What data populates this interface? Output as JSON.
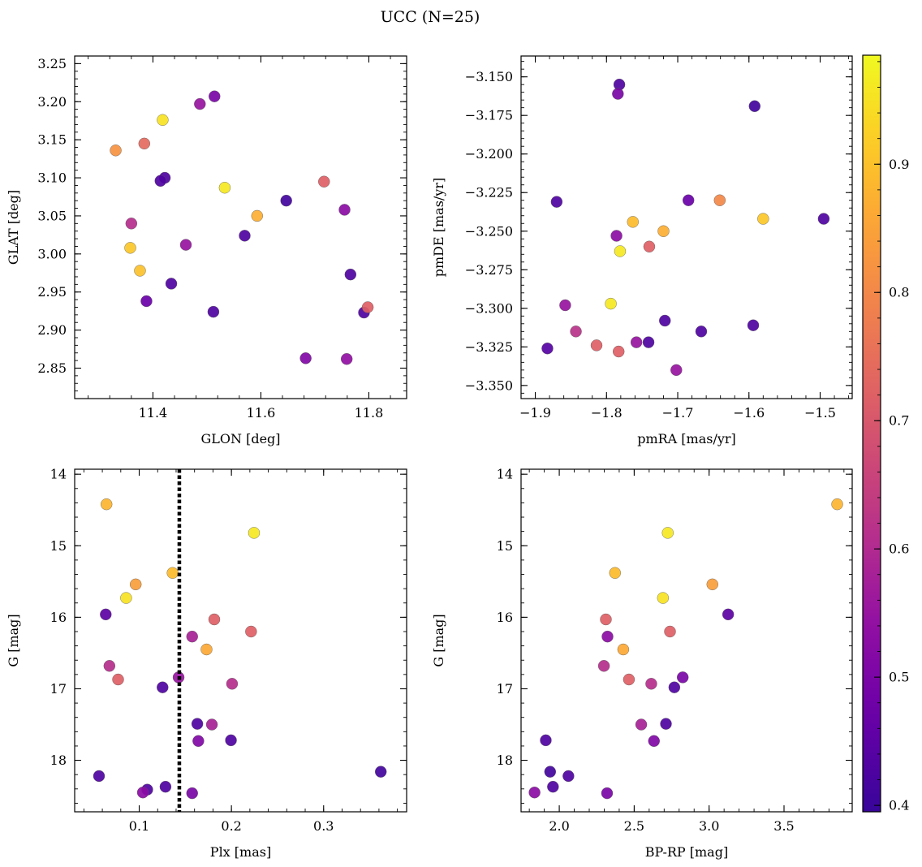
{
  "figure": {
    "title": "UCC (N=25)"
  },
  "colorbar": {
    "colormap": "plasma",
    "range": [
      0.395,
      0.985
    ],
    "ticks": [
      0.4,
      0.5,
      0.6,
      0.7,
      0.8,
      0.9
    ],
    "tick_labels": [
      "0.4",
      "0.5",
      "0.6",
      "0.7",
      "0.8",
      "0.9"
    ]
  },
  "chart_data": [
    {
      "type": "scatter",
      "xlabel": "GLON [deg]",
      "ylabel": "GLAT [deg]",
      "xlim": [
        11.255,
        11.87
      ],
      "ylim": [
        2.81,
        3.26
      ],
      "xticks": [
        11.4,
        11.6,
        11.8
      ],
      "xtick_labels": [
        "11.4",
        "11.6",
        "11.8"
      ],
      "yticks": [
        2.85,
        2.9,
        2.95,
        3.0,
        3.05,
        3.1,
        3.15,
        3.2,
        3.25
      ],
      "ytick_labels": [
        "2.85",
        "2.90",
        "2.95",
        "3.00",
        "3.05",
        "3.10",
        "3.15",
        "3.20",
        "3.25"
      ],
      "y_inverted": false,
      "points": [
        {
          "x": 11.331,
          "y": 3.136,
          "c": 0.82
        },
        {
          "x": 11.384,
          "y": 3.145,
          "c": 0.74
        },
        {
          "x": 11.418,
          "y": 3.176,
          "c": 0.95
        },
        {
          "x": 11.487,
          "y": 3.197,
          "c": 0.55
        },
        {
          "x": 11.514,
          "y": 3.207,
          "c": 0.5
        },
        {
          "x": 11.422,
          "y": 3.1,
          "c": 0.43
        },
        {
          "x": 11.414,
          "y": 3.096,
          "c": 0.43
        },
        {
          "x": 11.533,
          "y": 3.087,
          "c": 0.96
        },
        {
          "x": 11.36,
          "y": 3.04,
          "c": 0.61
        },
        {
          "x": 11.358,
          "y": 3.008,
          "c": 0.91
        },
        {
          "x": 11.376,
          "y": 2.978,
          "c": 0.9
        },
        {
          "x": 11.461,
          "y": 3.012,
          "c": 0.55
        },
        {
          "x": 11.434,
          "y": 2.961,
          "c": 0.43
        },
        {
          "x": 11.388,
          "y": 2.938,
          "c": 0.47
        },
        {
          "x": 11.512,
          "y": 2.924,
          "c": 0.43
        },
        {
          "x": 11.593,
          "y": 3.05,
          "c": 0.87
        },
        {
          "x": 11.57,
          "y": 3.024,
          "c": 0.43
        },
        {
          "x": 11.647,
          "y": 3.07,
          "c": 0.41
        },
        {
          "x": 11.717,
          "y": 3.095,
          "c": 0.72
        },
        {
          "x": 11.755,
          "y": 3.058,
          "c": 0.53
        },
        {
          "x": 11.766,
          "y": 2.973,
          "c": 0.43
        },
        {
          "x": 11.791,
          "y": 2.923,
          "c": 0.43
        },
        {
          "x": 11.798,
          "y": 2.93,
          "c": 0.72
        },
        {
          "x": 11.683,
          "y": 2.863,
          "c": 0.51
        },
        {
          "x": 11.759,
          "y": 2.862,
          "c": 0.54
        }
      ]
    },
    {
      "type": "scatter",
      "xlabel": "pmRA [mas/yr]",
      "ylabel": "pmDE [mas/yr]",
      "xlim": [
        -1.92,
        -1.455
      ],
      "ylim": [
        -3.3585,
        -3.1365
      ],
      "xticks": [
        -1.9,
        -1.8,
        -1.7,
        -1.6,
        -1.5
      ],
      "xtick_labels": [
        "−1.9",
        "−1.8",
        "−1.7",
        "−1.6",
        "−1.5"
      ],
      "yticks": [
        -3.35,
        -3.325,
        -3.3,
        -3.275,
        -3.25,
        -3.225,
        -3.2,
        -3.175,
        -3.15
      ],
      "ytick_labels": [
        "−3.350",
        "−3.325",
        "−3.300",
        "−3.275",
        "−3.250",
        "−3.225",
        "−3.200",
        "−3.175",
        "−3.150"
      ],
      "y_inverted": false,
      "points": [
        {
          "x": -1.782,
          "y": -3.155,
          "c": 0.43
        },
        {
          "x": -1.784,
          "y": -3.161,
          "c": 0.5
        },
        {
          "x": -1.592,
          "y": -3.169,
          "c": 0.41
        },
        {
          "x": -1.87,
          "y": -3.231,
          "c": 0.43
        },
        {
          "x": -1.685,
          "y": -3.23,
          "c": 0.47
        },
        {
          "x": -1.641,
          "y": -3.23,
          "c": 0.8
        },
        {
          "x": -1.763,
          "y": -3.244,
          "c": 0.89
        },
        {
          "x": -1.58,
          "y": -3.242,
          "c": 0.91
        },
        {
          "x": -1.495,
          "y": -3.242,
          "c": 0.43
        },
        {
          "x": -1.786,
          "y": -3.253,
          "c": 0.53
        },
        {
          "x": -1.72,
          "y": -3.25,
          "c": 0.87
        },
        {
          "x": -1.74,
          "y": -3.26,
          "c": 0.72
        },
        {
          "x": -1.781,
          "y": -3.263,
          "c": 0.96
        },
        {
          "x": -1.858,
          "y": -3.298,
          "c": 0.55
        },
        {
          "x": -1.794,
          "y": -3.297,
          "c": 0.96
        },
        {
          "x": -1.843,
          "y": -3.315,
          "c": 0.62
        },
        {
          "x": -1.718,
          "y": -3.308,
          "c": 0.43
        },
        {
          "x": -1.667,
          "y": -3.315,
          "c": 0.43
        },
        {
          "x": -1.594,
          "y": -3.311,
          "c": 0.43
        },
        {
          "x": -1.883,
          "y": -3.326,
          "c": 0.44
        },
        {
          "x": -1.814,
          "y": -3.324,
          "c": 0.72
        },
        {
          "x": -1.758,
          "y": -3.322,
          "c": 0.55
        },
        {
          "x": -1.741,
          "y": -3.322,
          "c": 0.43
        },
        {
          "x": -1.783,
          "y": -3.328,
          "c": 0.72
        },
        {
          "x": -1.702,
          "y": -3.34,
          "c": 0.55
        }
      ]
    },
    {
      "type": "scatter",
      "xlabel": "Plx [mas]",
      "ylabel": "G [mag]",
      "xlim": [
        0.03,
        0.39
      ],
      "ylim": [
        18.72,
        13.93
      ],
      "xticks": [
        0.1,
        0.2,
        0.3
      ],
      "xtick_labels": [
        "0.1",
        "0.2",
        "0.3"
      ],
      "yticks": [
        14,
        15,
        16,
        17,
        18
      ],
      "ytick_labels": [
        "14",
        "15",
        "16",
        "17",
        "18"
      ],
      "y_inverted": true,
      "vline": {
        "x": 0.1435,
        "style": "dotted"
      },
      "points": [
        {
          "x": 0.0645,
          "y": 14.42,
          "c": 0.88
        },
        {
          "x": 0.2245,
          "y": 14.82,
          "c": 0.96
        },
        {
          "x": 0.0962,
          "y": 15.54,
          "c": 0.84
        },
        {
          "x": 0.1362,
          "y": 15.38,
          "c": 0.89
        },
        {
          "x": 0.0858,
          "y": 15.73,
          "c": 0.95
        },
        {
          "x": 0.0637,
          "y": 15.96,
          "c": 0.45
        },
        {
          "x": 0.1814,
          "y": 16.03,
          "c": 0.72
        },
        {
          "x": 0.2213,
          "y": 16.2,
          "c": 0.72
        },
        {
          "x": 0.1574,
          "y": 16.27,
          "c": 0.58
        },
        {
          "x": 0.173,
          "y": 16.45,
          "c": 0.86
        },
        {
          "x": 0.0677,
          "y": 16.68,
          "c": 0.61
        },
        {
          "x": 0.0771,
          "y": 16.87,
          "c": 0.72
        },
        {
          "x": 0.1427,
          "y": 16.84,
          "c": 0.55
        },
        {
          "x": 0.2007,
          "y": 16.93,
          "c": 0.61
        },
        {
          "x": 0.1253,
          "y": 16.98,
          "c": 0.43
        },
        {
          "x": 0.163,
          "y": 17.49,
          "c": 0.43
        },
        {
          "x": 0.1788,
          "y": 17.5,
          "c": 0.58
        },
        {
          "x": 0.1641,
          "y": 17.73,
          "c": 0.51
        },
        {
          "x": 0.1995,
          "y": 17.72,
          "c": 0.43
        },
        {
          "x": 0.0564,
          "y": 18.22,
          "c": 0.43
        },
        {
          "x": 0.362,
          "y": 18.16,
          "c": 0.41
        },
        {
          "x": 0.1087,
          "y": 18.41,
          "c": 0.43
        },
        {
          "x": 0.1285,
          "y": 18.37,
          "c": 0.43
        },
        {
          "x": 0.104,
          "y": 18.45,
          "c": 0.53
        },
        {
          "x": 0.1574,
          "y": 18.46,
          "c": 0.5
        }
      ]
    },
    {
      "type": "scatter",
      "xlabel": "BP-RP [mag]",
      "ylabel": "G [mag]",
      "xlim": [
        1.745,
        3.955
      ],
      "ylim": [
        18.72,
        13.93
      ],
      "xticks": [
        2.0,
        2.5,
        3.0,
        3.5
      ],
      "xtick_labels": [
        "2.0",
        "2.5",
        "3.0",
        "3.5"
      ],
      "yticks": [
        14,
        15,
        16,
        17,
        18
      ],
      "ytick_labels": [
        "14",
        "15",
        "16",
        "17",
        "18"
      ],
      "y_inverted": true,
      "points": [
        {
          "x": 3.855,
          "y": 14.42,
          "c": 0.88
        },
        {
          "x": 2.724,
          "y": 14.82,
          "c": 0.96
        },
        {
          "x": 2.372,
          "y": 15.38,
          "c": 0.89
        },
        {
          "x": 3.022,
          "y": 15.54,
          "c": 0.84
        },
        {
          "x": 2.692,
          "y": 15.73,
          "c": 0.95
        },
        {
          "x": 2.311,
          "y": 16.03,
          "c": 0.72
        },
        {
          "x": 3.127,
          "y": 15.96,
          "c": 0.45
        },
        {
          "x": 2.322,
          "y": 16.27,
          "c": 0.53
        },
        {
          "x": 2.739,
          "y": 16.2,
          "c": 0.72
        },
        {
          "x": 2.427,
          "y": 16.45,
          "c": 0.86
        },
        {
          "x": 2.298,
          "y": 16.68,
          "c": 0.61
        },
        {
          "x": 2.465,
          "y": 16.87,
          "c": 0.72
        },
        {
          "x": 2.614,
          "y": 16.93,
          "c": 0.61
        },
        {
          "x": 2.824,
          "y": 16.84,
          "c": 0.5
        },
        {
          "x": 2.768,
          "y": 16.98,
          "c": 0.43
        },
        {
          "x": 2.547,
          "y": 17.5,
          "c": 0.58
        },
        {
          "x": 2.712,
          "y": 17.49,
          "c": 0.43
        },
        {
          "x": 1.91,
          "y": 17.72,
          "c": 0.43
        },
        {
          "x": 2.632,
          "y": 17.73,
          "c": 0.51
        },
        {
          "x": 1.939,
          "y": 18.16,
          "c": 0.41
        },
        {
          "x": 2.061,
          "y": 18.22,
          "c": 0.43
        },
        {
          "x": 1.958,
          "y": 18.37,
          "c": 0.43
        },
        {
          "x": 1.835,
          "y": 18.45,
          "c": 0.53
        },
        {
          "x": 2.319,
          "y": 18.46,
          "c": 0.5
        }
      ]
    }
  ]
}
